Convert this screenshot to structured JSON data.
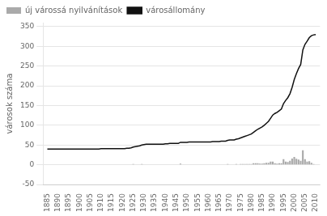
{
  "chart_data": {
    "type": "bar",
    "x": [
      1885,
      1886,
      1887,
      1888,
      1889,
      1890,
      1891,
      1892,
      1893,
      1894,
      1895,
      1896,
      1897,
      1898,
      1899,
      1900,
      1901,
      1902,
      1903,
      1904,
      1905,
      1906,
      1907,
      1908,
      1909,
      1910,
      1911,
      1912,
      1913,
      1914,
      1915,
      1916,
      1917,
      1918,
      1919,
      1920,
      1921,
      1922,
      1923,
      1924,
      1925,
      1926,
      1927,
      1928,
      1929,
      1930,
      1931,
      1932,
      1933,
      1934,
      1935,
      1936,
      1937,
      1938,
      1939,
      1940,
      1941,
      1942,
      1943,
      1944,
      1945,
      1946,
      1947,
      1948,
      1949,
      1950,
      1951,
      1952,
      1953,
      1954,
      1955,
      1956,
      1957,
      1958,
      1959,
      1960,
      1961,
      1962,
      1963,
      1964,
      1965,
      1966,
      1967,
      1968,
      1969,
      1970,
      1971,
      1972,
      1973,
      1974,
      1975,
      1976,
      1977,
      1978,
      1979,
      1980,
      1981,
      1982,
      1983,
      1984,
      1985,
      1986,
      1987,
      1988,
      1989,
      1990,
      1991,
      1992,
      1993,
      1994,
      1995,
      1996,
      1997,
      1998,
      1999,
      2000,
      2001,
      2002,
      2003,
      2004,
      2005,
      2006,
      2007,
      2008,
      2009,
      2010
    ],
    "series": [
      {
        "name": "új várossá nyilvánítások",
        "type": "bar",
        "color": "#aaaaaa",
        "values": [
          0,
          0,
          0,
          0,
          0,
          0,
          0,
          0,
          0,
          0,
          0,
          0,
          0,
          0,
          0,
          0,
          0,
          0,
          0,
          0,
          0,
          0,
          0,
          0,
          0,
          1,
          0,
          0,
          0,
          0,
          0,
          0,
          0,
          0,
          0,
          0,
          0,
          1,
          0,
          1,
          2,
          1,
          1,
          1,
          2,
          1,
          1,
          0,
          0,
          0,
          0,
          0,
          0,
          0,
          0,
          1,
          0,
          1,
          0,
          0,
          0,
          0,
          3,
          0,
          0,
          0,
          1,
          0,
          0,
          0,
          0,
          0,
          0,
          0,
          0,
          0,
          0,
          1,
          0,
          0,
          0,
          1,
          0,
          0,
          2,
          1,
          0,
          0,
          2,
          1,
          2,
          2,
          2,
          2,
          2,
          2,
          4,
          4,
          4,
          3,
          3,
          4,
          5,
          5,
          8,
          8,
          4,
          3,
          4,
          4,
          14,
          8,
          7,
          10,
          16,
          20,
          15,
          13,
          10,
          37,
          14,
          8,
          9,
          5,
          2,
          1
        ]
      },
      {
        "name": "városállomány",
        "type": "line",
        "color": "#111111",
        "values": [
          40,
          40,
          40,
          40,
          40,
          40,
          40,
          40,
          40,
          40,
          40,
          40,
          40,
          40,
          40,
          40,
          40,
          40,
          40,
          40,
          40,
          40,
          40,
          40,
          40,
          41,
          41,
          41,
          41,
          41,
          41,
          41,
          41,
          41,
          41,
          41,
          41,
          42,
          42,
          43,
          45,
          46,
          47,
          48,
          50,
          51,
          52,
          52,
          52,
          52,
          52,
          52,
          52,
          52,
          52,
          53,
          53,
          54,
          54,
          54,
          54,
          54,
          57,
          57,
          57,
          57,
          58,
          58,
          58,
          58,
          58,
          58,
          58,
          58,
          58,
          58,
          58,
          59,
          59,
          59,
          59,
          60,
          60,
          60,
          62,
          63,
          63,
          63,
          65,
          66,
          68,
          70,
          72,
          74,
          76,
          78,
          82,
          86,
          90,
          93,
          96,
          100,
          105,
          110,
          118,
          126,
          130,
          133,
          137,
          141,
          155,
          163,
          170,
          180,
          196,
          216,
          231,
          244,
          254,
          291,
          305,
          313,
          322,
          327,
          329,
          330
        ]
      }
    ],
    "ylabel": "városok száma",
    "xlim": [
      1883,
      2012
    ],
    "xticks": [
      1885,
      1890,
      1895,
      1900,
      1905,
      1910,
      1915,
      1920,
      1925,
      1930,
      1935,
      1940,
      1945,
      1950,
      1955,
      1960,
      1965,
      1970,
      1975,
      1980,
      1985,
      1990,
      1995,
      2000,
      2005,
      2010
    ],
    "ylim": [
      -50,
      360
    ],
    "yticks": [
      -50,
      0,
      50,
      100,
      150,
      200,
      250,
      300,
      350
    ],
    "grid": "y",
    "legend": "upper left"
  }
}
